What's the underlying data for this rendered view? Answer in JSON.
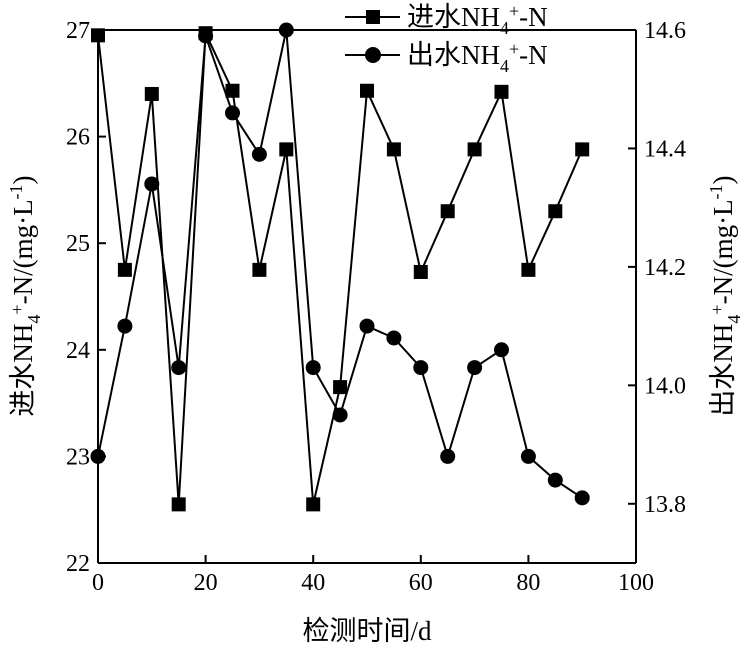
{
  "chart_data": {
    "type": "line",
    "xlabel": "检测时间/d",
    "ylabel_left": "进水NH4+-N/(mg·L-1)",
    "ylabel_right": "出水NH4+-N/(mg·L-1)",
    "xlim": [
      0,
      100
    ],
    "ylim_left": [
      22,
      27
    ],
    "ylim_right": [
      13.7,
      14.6
    ],
    "x_ticks": [
      0,
      20,
      40,
      60,
      80,
      100
    ],
    "y_left_ticks": [
      22,
      23,
      24,
      25,
      26,
      27
    ],
    "y_right_ticks": [
      13.8,
      14.0,
      14.2,
      14.4,
      14.6
    ],
    "grid": false,
    "legend_position": "top-right",
    "series": [
      {
        "name": "进水NH4+-N",
        "axis": "left",
        "marker": "square",
        "x": [
          0,
          5,
          10,
          15,
          20,
          25,
          30,
          35,
          40,
          45,
          50,
          55,
          60,
          65,
          70,
          75,
          80,
          85,
          90
        ],
        "y": [
          26.95,
          24.75,
          26.4,
          22.55,
          26.97,
          26.43,
          24.75,
          25.88,
          22.55,
          23.65,
          26.43,
          25.88,
          24.73,
          25.3,
          25.88,
          26.42,
          24.75,
          25.3,
          25.88
        ]
      },
      {
        "name": "出水NH4+-N",
        "axis": "right",
        "marker": "circle",
        "x": [
          0,
          5,
          10,
          15,
          20,
          25,
          30,
          35,
          40,
          45,
          50,
          55,
          60,
          65,
          70,
          75,
          80,
          85,
          90
        ],
        "y": [
          13.88,
          14.1,
          14.34,
          14.03,
          14.59,
          14.46,
          14.39,
          14.6,
          14.03,
          13.95,
          14.1,
          14.08,
          14.03,
          13.88,
          14.03,
          14.06,
          13.88,
          13.84,
          13.81
        ]
      }
    ]
  }
}
